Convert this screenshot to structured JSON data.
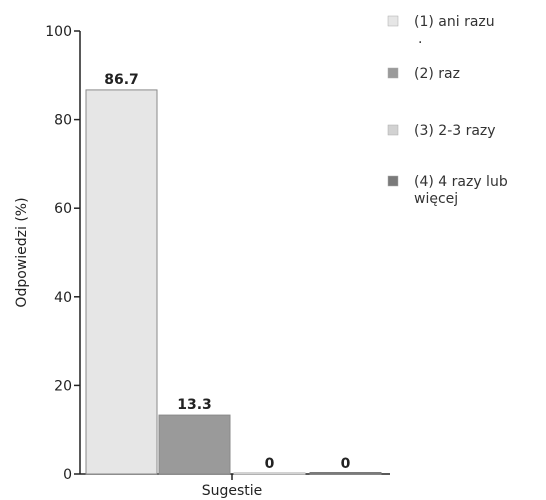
{
  "chart_data": {
    "type": "bar",
    "categories": [
      "Sugestie"
    ],
    "series": [
      {
        "name": "(1) ani razu .",
        "values": [
          86.7
        ],
        "color": "#e6e6e6"
      },
      {
        "name": "(2) raz",
        "values": [
          13.3
        ],
        "color": "#9a9a9a"
      },
      {
        "name": "(3) 2-3 razy",
        "values": [
          0
        ],
        "color": "#d2d2d2"
      },
      {
        "name": "(4) 4 razy lub więcej",
        "values": [
          0
        ],
        "color": "#7a7a7a"
      }
    ],
    "data_labels": [
      "86.7",
      "13.3",
      "0",
      "0"
    ],
    "xlabel": "Sugestie",
    "ylabel": "Odpowiedzi (%)",
    "ylim": [
      0,
      100
    ],
    "yticks": [
      0,
      20,
      40,
      60,
      80,
      100
    ],
    "legend_position": "right",
    "grid": false
  }
}
